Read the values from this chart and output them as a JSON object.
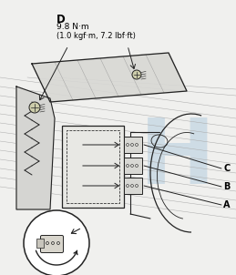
{
  "bg_color": "#f0f0ee",
  "fig_width": 2.59,
  "fig_height": 3.02,
  "dpi": 100,
  "label_D": "D",
  "label_torque1": "9.8 N·m",
  "label_torque2": "(1.0 kgf·m, 7.2 lbf·ft)",
  "label_A": "A",
  "label_B": "B",
  "label_C": "C",
  "line_color": "#222222",
  "honda_color": "#b8cfe0",
  "label_font_size": 7.0,
  "small_font_size": 6.0
}
